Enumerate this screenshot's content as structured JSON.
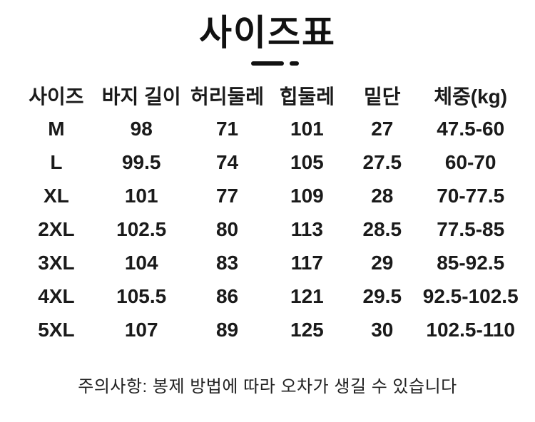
{
  "page": {
    "background_color": "#ffffff",
    "text_color": "#1a1a1a"
  },
  "title": {
    "text": "사이즈표"
  },
  "size_table": {
    "headers": [
      "사이즈",
      "바지 길이",
      "허리둘레",
      "힙둘레",
      "밑단",
      "체중(kg)"
    ],
    "rows": [
      [
        "M",
        "98",
        "71",
        "101",
        "27",
        "47.5-60"
      ],
      [
        "L",
        "99.5",
        "74",
        "105",
        "27.5",
        "60-70"
      ],
      [
        "XL",
        "101",
        "77",
        "109",
        "28",
        "70-77.5"
      ],
      [
        "2XL",
        "102.5",
        "80",
        "113",
        "28.5",
        "77.5-85"
      ],
      [
        "3XL",
        "104",
        "83",
        "117",
        "29",
        "85-92.5"
      ],
      [
        "4XL",
        "105.5",
        "86",
        "121",
        "29.5",
        "92.5-102.5"
      ],
      [
        "5XL",
        "107",
        "89",
        "125",
        "30",
        "102.5-110"
      ]
    ],
    "column_widths_percent": [
      16.6,
      17.0,
      16.9,
      14.6,
      15.1,
      19.8
    ]
  },
  "footer": {
    "note": "주의사항: 봉제 방법에 따라 오차가 생길 수 있습니다"
  }
}
